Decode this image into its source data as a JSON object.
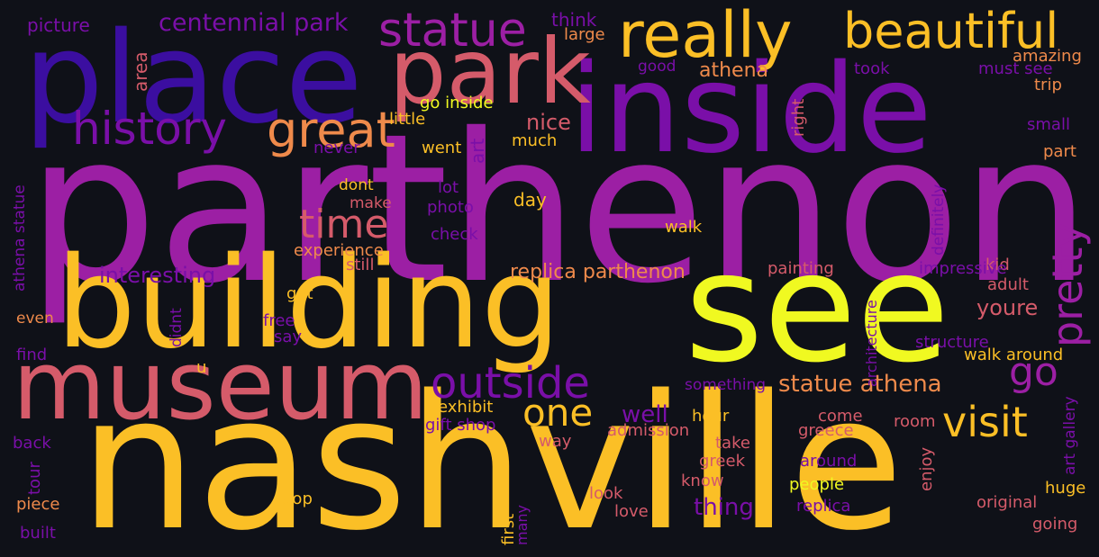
{
  "palette": {
    "background": "#0f1118",
    "deep_indigo": "#3b0ea0",
    "purple": "#7a0fa8",
    "magenta": "#9c1fa4",
    "rose": "#d55b6a",
    "orange": "#ef8a4b",
    "amber": "#fbbf26",
    "yellow": "#f0f921"
  },
  "words": [
    {
      "text": "parthenon",
      "color": "#9c1fa4",
      "rotated": false
    },
    {
      "text": "nashville",
      "color": "#fbbf26",
      "rotated": false
    },
    {
      "text": "building",
      "color": "#fbbf26",
      "rotated": false
    },
    {
      "text": "see",
      "color": "#f0f921",
      "rotated": false
    },
    {
      "text": "inside",
      "color": "#7a0fa8",
      "rotated": false
    },
    {
      "text": "place",
      "color": "#3b0ea0",
      "rotated": false
    },
    {
      "text": "museum",
      "color": "#d55b6a",
      "rotated": false
    },
    {
      "text": "park",
      "color": "#d55b6a",
      "rotated": false
    },
    {
      "text": "really",
      "color": "#fbbf26",
      "rotated": false
    },
    {
      "text": "beautiful",
      "color": "#fbbf26",
      "rotated": false
    },
    {
      "text": "statue",
      "color": "#9c1fa4",
      "rotated": false
    },
    {
      "text": "history",
      "color": "#7a0fa8",
      "rotated": false
    },
    {
      "text": "great",
      "color": "#ef8a4b",
      "rotated": false
    },
    {
      "text": "time",
      "color": "#d55b6a",
      "rotated": false
    },
    {
      "text": "outside",
      "color": "#7a0fa8",
      "rotated": false
    },
    {
      "text": "visit",
      "color": "#fbbf26",
      "rotated": false
    },
    {
      "text": "pretty",
      "color": "#9c1fa4",
      "rotated": true
    },
    {
      "text": "go",
      "color": "#9c1fa4",
      "rotated": false
    },
    {
      "text": "one",
      "color": "#fbbf26",
      "rotated": false
    },
    {
      "text": "centennial park",
      "color": "#7a0fa8",
      "rotated": false
    },
    {
      "text": "statue athena",
      "color": "#ef8a4b",
      "rotated": false
    },
    {
      "text": "replica parthenon",
      "color": "#ef8a4b",
      "rotated": false
    },
    {
      "text": "interesting",
      "color": "#7a0fa8",
      "rotated": false
    },
    {
      "text": "thing",
      "color": "#7a0fa8",
      "rotated": false
    },
    {
      "text": "well",
      "color": "#7a0fa8",
      "rotated": false
    },
    {
      "text": "athena",
      "color": "#ef8a4b",
      "rotated": false
    },
    {
      "text": "nice",
      "color": "#d55b6a",
      "rotated": false
    },
    {
      "text": "youre",
      "color": "#d55b6a",
      "rotated": false
    },
    {
      "text": "picture",
      "color": "#7a0fa8",
      "rotated": false
    },
    {
      "text": "area",
      "color": "#d55b6a",
      "rotated": true
    },
    {
      "text": "think",
      "color": "#7a0fa8",
      "rotated": false
    },
    {
      "text": "large",
      "color": "#ef8a4b",
      "rotated": false
    },
    {
      "text": "good",
      "color": "#7a0fa8",
      "rotated": false
    },
    {
      "text": "took",
      "color": "#7a0fa8",
      "rotated": false
    },
    {
      "text": "amazing",
      "color": "#ef8a4b",
      "rotated": false
    },
    {
      "text": "must see",
      "color": "#7a0fa8",
      "rotated": false
    },
    {
      "text": "trip",
      "color": "#ef8a4b",
      "rotated": false
    },
    {
      "text": "small",
      "color": "#7a0fa8",
      "rotated": false
    },
    {
      "text": "part",
      "color": "#ef8a4b",
      "rotated": false
    },
    {
      "text": "go inside",
      "color": "#f0f921",
      "rotated": false
    },
    {
      "text": "little",
      "color": "#fbbf26",
      "rotated": false
    },
    {
      "text": "right",
      "color": "#d55b6a",
      "rotated": true
    },
    {
      "text": "never",
      "color": "#7a0fa8",
      "rotated": false
    },
    {
      "text": "went",
      "color": "#fbbf26",
      "rotated": false
    },
    {
      "text": "art",
      "color": "#7a0fa8",
      "rotated": true
    },
    {
      "text": "much",
      "color": "#fbbf26",
      "rotated": false
    },
    {
      "text": "athena statue",
      "color": "#7a0fa8",
      "rotated": true
    },
    {
      "text": "dont",
      "color": "#fbbf26",
      "rotated": false
    },
    {
      "text": "make",
      "color": "#d55b6a",
      "rotated": false
    },
    {
      "text": "lot",
      "color": "#7a0fa8",
      "rotated": false
    },
    {
      "text": "photo",
      "color": "#7a0fa8",
      "rotated": false
    },
    {
      "text": "day",
      "color": "#fbbf26",
      "rotated": false
    },
    {
      "text": "definitely",
      "color": "#7a0fa8",
      "rotated": true
    },
    {
      "text": "check",
      "color": "#7a0fa8",
      "rotated": false
    },
    {
      "text": "walk",
      "color": "#fbbf26",
      "rotated": false
    },
    {
      "text": "experience",
      "color": "#ef8a4b",
      "rotated": false
    },
    {
      "text": "still",
      "color": "#d55b6a",
      "rotated": false
    },
    {
      "text": "kid",
      "color": "#d55b6a",
      "rotated": false
    },
    {
      "text": "painting",
      "color": "#d55b6a",
      "rotated": false
    },
    {
      "text": "impressive",
      "color": "#7a0fa8",
      "rotated": false
    },
    {
      "text": "adult",
      "color": "#d55b6a",
      "rotated": false
    },
    {
      "text": "architecture",
      "color": "#7a0fa8",
      "rotated": true
    },
    {
      "text": "got",
      "color": "#fbbf26",
      "rotated": false
    },
    {
      "text": "even",
      "color": "#ef8a4b",
      "rotated": false
    },
    {
      "text": "didnt",
      "color": "#7a0fa8",
      "rotated": true
    },
    {
      "text": "free",
      "color": "#7a0fa8",
      "rotated": false
    },
    {
      "text": "say",
      "color": "#7a0fa8",
      "rotated": false
    },
    {
      "text": "find",
      "color": "#7a0fa8",
      "rotated": false
    },
    {
      "text": "u",
      "color": "#fbbf26",
      "rotated": false
    },
    {
      "text": "structure",
      "color": "#7a0fa8",
      "rotated": false
    },
    {
      "text": "walk around",
      "color": "#fbbf26",
      "rotated": false
    },
    {
      "text": "art gallery",
      "color": "#7a0fa8",
      "rotated": true
    },
    {
      "text": "something",
      "color": "#7a0fa8",
      "rotated": false
    },
    {
      "text": "exhibit",
      "color": "#fbbf26",
      "rotated": false
    },
    {
      "text": "gift shop",
      "color": "#7a0fa8",
      "rotated": false
    },
    {
      "text": "hour",
      "color": "#fbbf26",
      "rotated": false
    },
    {
      "text": "come",
      "color": "#d55b6a",
      "rotated": false
    },
    {
      "text": "room",
      "color": "#d55b6a",
      "rotated": false
    },
    {
      "text": "admission",
      "color": "#d55b6a",
      "rotated": false
    },
    {
      "text": "greece",
      "color": "#d55b6a",
      "rotated": false
    },
    {
      "text": "back",
      "color": "#7a0fa8",
      "rotated": false
    },
    {
      "text": "way",
      "color": "#d55b6a",
      "rotated": false
    },
    {
      "text": "take",
      "color": "#d55b6a",
      "rotated": false
    },
    {
      "text": "greek",
      "color": "#d55b6a",
      "rotated": false
    },
    {
      "text": "around",
      "color": "#7a0fa8",
      "rotated": false
    },
    {
      "text": "enjoy",
      "color": "#d55b6a",
      "rotated": true
    },
    {
      "text": "tour",
      "color": "#7a0fa8",
      "rotated": true
    },
    {
      "text": "know",
      "color": "#d55b6a",
      "rotated": false
    },
    {
      "text": "people",
      "color": "#f0f921",
      "rotated": false
    },
    {
      "text": "huge",
      "color": "#fbbf26",
      "rotated": false
    },
    {
      "text": "piece",
      "color": "#ef8a4b",
      "rotated": false
    },
    {
      "text": "stop",
      "color": "#fbbf26",
      "rotated": false
    },
    {
      "text": "first",
      "color": "#fbbf26",
      "rotated": true
    },
    {
      "text": "many",
      "color": "#7a0fa8",
      "rotated": true
    },
    {
      "text": "look",
      "color": "#d55b6a",
      "rotated": false
    },
    {
      "text": "replica",
      "color": "#7a0fa8",
      "rotated": false
    },
    {
      "text": "original",
      "color": "#d55b6a",
      "rotated": false
    },
    {
      "text": "love",
      "color": "#d55b6a",
      "rotated": false
    },
    {
      "text": "built",
      "color": "#7a0fa8",
      "rotated": false
    },
    {
      "text": "going",
      "color": "#d55b6a",
      "rotated": false
    }
  ]
}
